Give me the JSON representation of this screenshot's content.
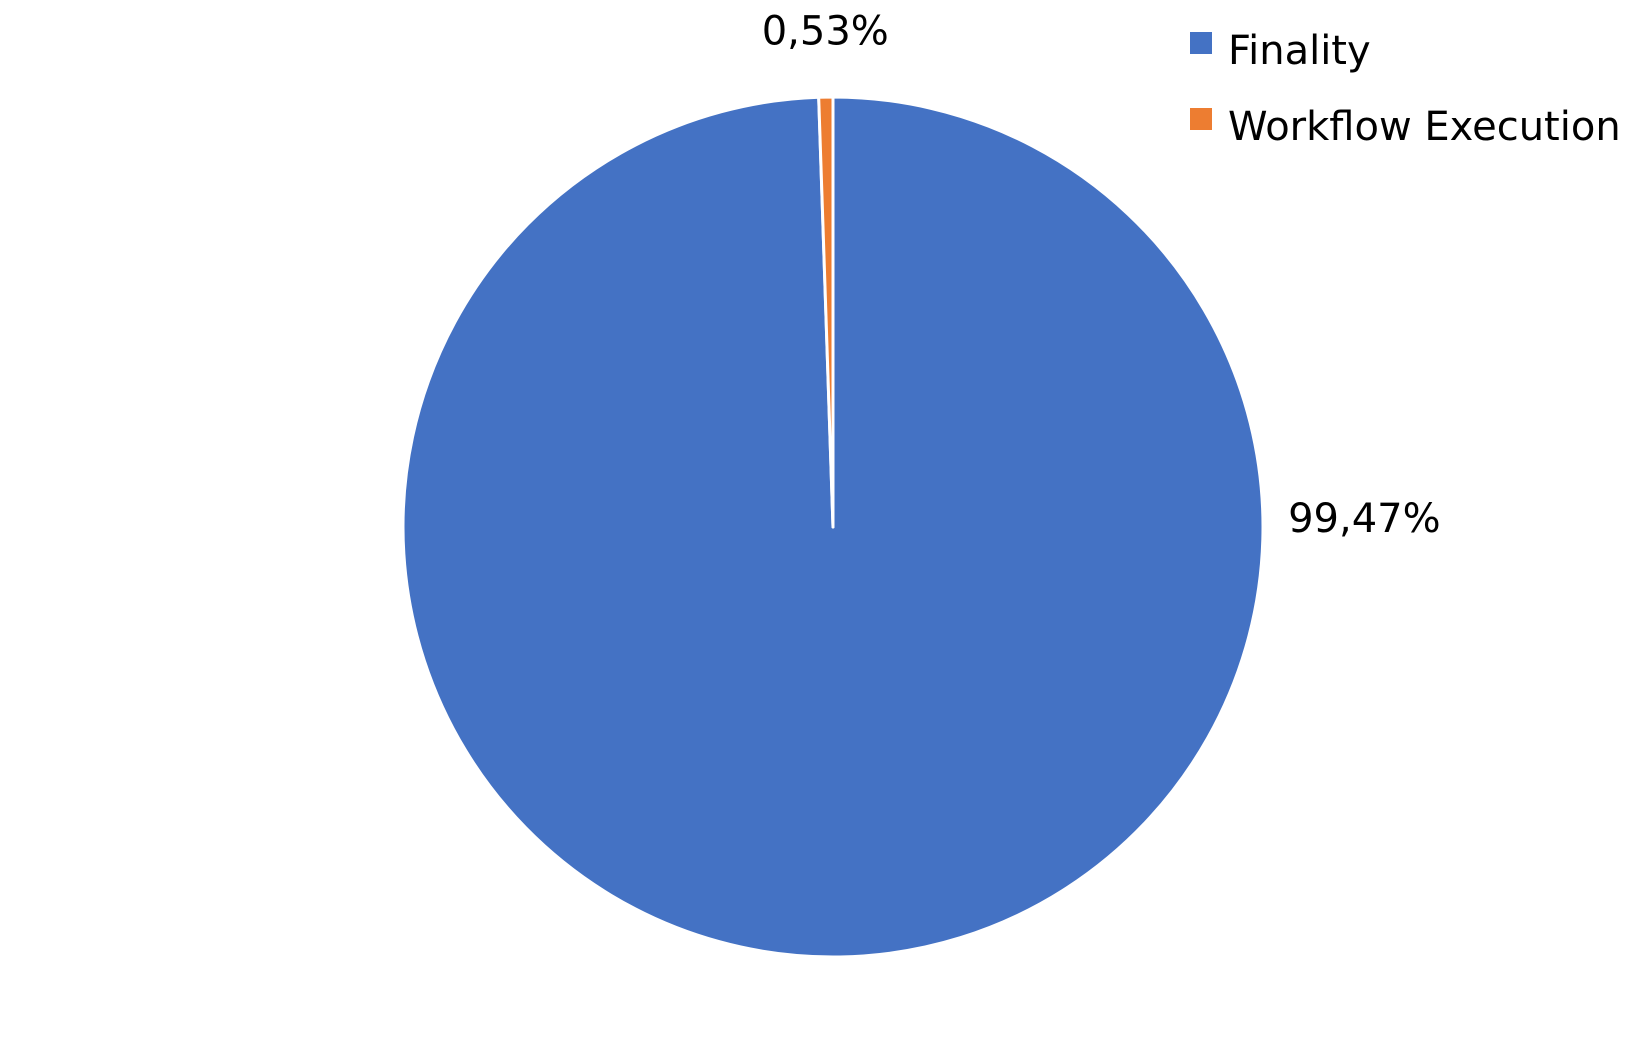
{
  "chart_data": {
    "type": "pie",
    "title": "",
    "slices": [
      {
        "label": "Finality",
        "value": 99.47,
        "value_label": "99,47%",
        "color": "#4472C4"
      },
      {
        "label": "Workflow Execution",
        "value": 0.53,
        "value_label": "0,53%",
        "color": "#ED7D31"
      }
    ],
    "legend": {
      "placement": "top-right",
      "entries": [
        "Finality",
        "Workflow Execution"
      ]
    },
    "start_angle": "12 o'clock",
    "direction": "clockwise"
  }
}
